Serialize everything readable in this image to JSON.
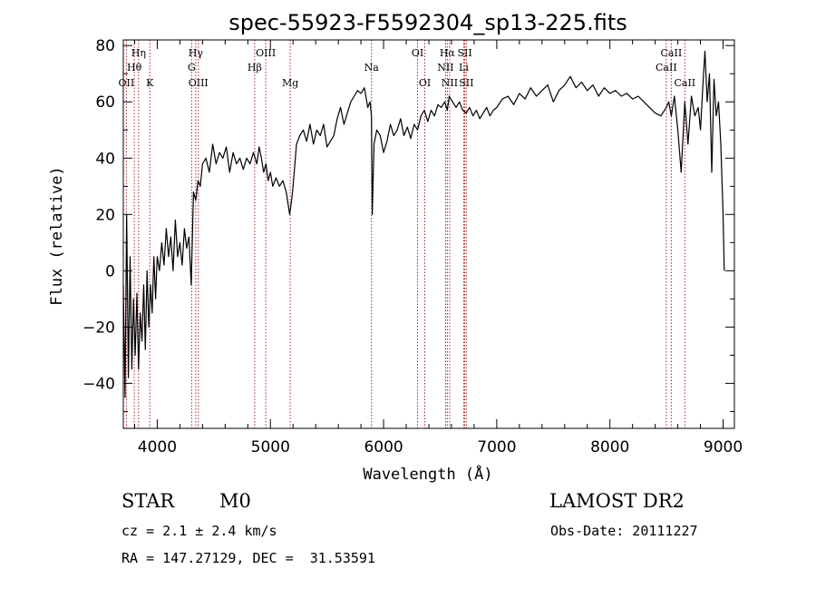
{
  "chart_data": {
    "type": "line",
    "title": "spec-55923-F5592304_sp13-225.fits",
    "xlabel": "Wavelength (Å)",
    "ylabel": "Flux (relative)",
    "xlim": [
      3700,
      9100
    ],
    "ylim": [
      -56,
      82
    ],
    "xticks": [
      4000,
      5000,
      6000,
      7000,
      8000,
      9000
    ],
    "xtick_labels": [
      "4000",
      "5000",
      "6000",
      "7000",
      "8000",
      "9000"
    ],
    "yticks": [
      -40,
      -20,
      0,
      20,
      40,
      60,
      80
    ],
    "ytick_labels": [
      "−40",
      "−20",
      "0",
      "20",
      "40",
      "60",
      "80"
    ],
    "grid": false,
    "series_color": "#000000",
    "line_marker_color": "#b22222",
    "series": [
      {
        "x": [
          3700,
          3715,
          3730,
          3745,
          3760,
          3775,
          3790,
          3805,
          3820,
          3835,
          3850,
          3865,
          3880,
          3895,
          3910,
          3925,
          3940,
          3955,
          3970,
          3985,
          4000,
          4020,
          4040,
          4060,
          4080,
          4100,
          4120,
          4140,
          4160,
          4180,
          4200,
          4220,
          4240,
          4260,
          4280,
          4300,
          4320,
          4340,
          4360,
          4380,
          4400,
          4430,
          4460,
          4490,
          4520,
          4550,
          4580,
          4610,
          4640,
          4670,
          4700,
          4730,
          4760,
          4790,
          4820,
          4850,
          4880,
          4900,
          4920,
          4940,
          4960,
          4980,
          5000,
          5020,
          5050,
          5080,
          5110,
          5140,
          5170,
          5190,
          5200,
          5210,
          5230,
          5260,
          5290,
          5320,
          5350,
          5380,
          5410,
          5440,
          5470,
          5500,
          5530,
          5560,
          5590,
          5620,
          5650,
          5680,
          5710,
          5740,
          5770,
          5800,
          5830,
          5860,
          5880,
          5893,
          5900,
          5915,
          5940,
          5970,
          6000,
          6030,
          6060,
          6090,
          6120,
          6150,
          6180,
          6210,
          6240,
          6270,
          6300,
          6330,
          6360,
          6390,
          6420,
          6450,
          6480,
          6510,
          6540,
          6563,
          6580,
          6610,
          6640,
          6670,
          6700,
          6730,
          6760,
          6790,
          6820,
          6850,
          6880,
          6910,
          6940,
          6970,
          7000,
          7050,
          7100,
          7150,
          7200,
          7250,
          7300,
          7350,
          7400,
          7450,
          7500,
          7550,
          7600,
          7650,
          7700,
          7750,
          7800,
          7850,
          7900,
          7950,
          8000,
          8050,
          8100,
          8150,
          8200,
          8250,
          8300,
          8350,
          8400,
          8450,
          8498,
          8520,
          8542,
          8570,
          8600,
          8630,
          8662,
          8690,
          8720,
          8750,
          8780,
          8800,
          8820,
          8840,
          8860,
          8880,
          8900,
          8920,
          8940,
          8960,
          8980,
          9000,
          9010
        ],
        "y": [
          -5,
          -45,
          20,
          -38,
          5,
          -35,
          -10,
          -30,
          -8,
          -35,
          -15,
          -25,
          -5,
          -28,
          0,
          -20,
          -5,
          -15,
          5,
          -10,
          5,
          0,
          10,
          2,
          15,
          5,
          12,
          0,
          18,
          5,
          10,
          2,
          15,
          8,
          12,
          -5,
          28,
          25,
          32,
          30,
          38,
          40,
          35,
          45,
          38,
          42,
          40,
          44,
          35,
          42,
          38,
          40,
          36,
          40,
          38,
          42,
          38,
          44,
          40,
          35,
          38,
          32,
          35,
          30,
          33,
          30,
          32,
          28,
          20,
          26,
          30,
          35,
          45,
          48,
          50,
          46,
          52,
          45,
          50,
          48,
          52,
          44,
          46,
          48,
          54,
          58,
          52,
          56,
          60,
          62,
          64,
          63,
          65,
          58,
          60,
          55,
          20,
          45,
          50,
          48,
          42,
          46,
          52,
          48,
          50,
          54,
          48,
          51,
          47,
          52,
          50,
          55,
          57,
          53,
          57,
          55,
          59,
          58,
          60,
          57,
          62,
          60,
          58,
          60,
          57,
          56,
          58,
          55,
          57,
          54,
          56,
          58,
          55,
          57,
          58,
          61,
          62,
          59,
          63,
          61,
          65,
          62,
          64,
          66,
          60,
          64,
          66,
          69,
          65,
          67,
          64,
          66,
          62,
          65,
          63,
          64,
          62,
          63,
          61,
          62,
          60,
          58,
          56,
          55,
          58,
          60,
          55,
          62,
          50,
          35,
          60,
          45,
          62,
          55,
          58,
          50,
          65,
          78,
          60,
          70,
          35,
          68,
          55,
          60,
          45,
          20,
          0
        ]
      }
    ],
    "lines": [
      {
        "label": "OII",
        "x": 3727,
        "row": 2
      },
      {
        "label": "Hη",
        "x": 3835,
        "row": 0
      },
      {
        "label": "Hθ",
        "x": 3797,
        "row": 1
      },
      {
        "label": "K",
        "x": 3934,
        "row": 2
      },
      {
        "label": "Hγ",
        "x": 4340,
        "row": 0
      },
      {
        "label": "G",
        "x": 4304,
        "row": 1
      },
      {
        "label": "OIII",
        "x": 4363,
        "row": 2
      },
      {
        "label": "OIII",
        "x": 4959,
        "row": 0
      },
      {
        "label": "Hβ",
        "x": 4861,
        "row": 1
      },
      {
        "label": "Mg",
        "x": 5175,
        "row": 2
      },
      {
        "label": "Na",
        "x": 5893,
        "row": 1
      },
      {
        "label": "OI",
        "x": 6300,
        "row": 0
      },
      {
        "label": "OI",
        "x": 6364,
        "row": 2
      },
      {
        "label": "Hα",
        "x": 6563,
        "row": 0
      },
      {
        "label": "NII",
        "x": 6548,
        "row": 1
      },
      {
        "label": "NII",
        "x": 6584,
        "row": 2
      },
      {
        "label": "SII",
        "x": 6717,
        "row": 0
      },
      {
        "label": "Li",
        "x": 6708,
        "row": 1
      },
      {
        "label": "SII",
        "x": 6731,
        "row": 2
      },
      {
        "label": "CaII",
        "x": 8498,
        "row": 1
      },
      {
        "label": "CaII",
        "x": 8542,
        "row": 0
      },
      {
        "label": "CaII",
        "x": 8662,
        "row": 2
      }
    ]
  },
  "info": {
    "object_class": "STAR",
    "subclass": "M0",
    "survey": "LAMOST DR2",
    "cz_text": "cz = 2.1 ± 2.4 km/s",
    "obs_date": "Obs-Date: 20111227",
    "coords_text": "RA = 147.27129, DEC =  31.53591"
  }
}
